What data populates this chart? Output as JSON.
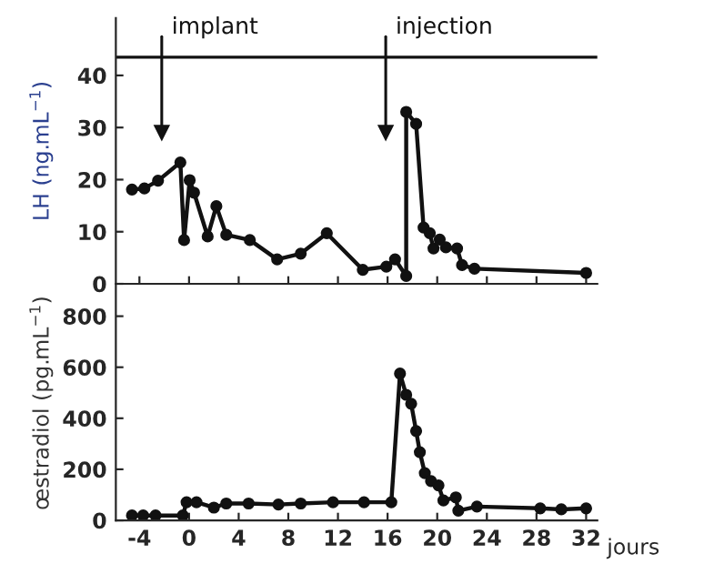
{
  "chart_data": [
    {
      "type": "line",
      "ylabel": "LH (ng.mL$^{−1}$)",
      "marker": "circle",
      "line_style": "solid",
      "tick_labels": "y",
      "xlim": [
        -5.9,
        32.9
      ],
      "xticks": [
        {
          "value": -4,
          "label": null
        },
        {
          "value": 0,
          "label": null
        },
        {
          "value": 4,
          "label": null
        },
        {
          "value": 8,
          "label": null
        },
        {
          "value": 12,
          "label": null
        },
        {
          "value": 16,
          "label": null
        },
        {
          "value": 20,
          "label": null
        },
        {
          "value": 24,
          "label": null
        },
        {
          "value": 28,
          "label": null
        },
        {
          "value": 32,
          "label": null
        }
      ],
      "ylim": [
        0,
        51
      ],
      "yticks": [
        0,
        10,
        20,
        30,
        40
      ],
      "series": [
        {
          "color": "#111111",
          "x": [
            -4.6,
            -3.6,
            -2.5,
            -0.7,
            -0.4,
            0.05,
            0.4,
            1.5,
            2.2,
            3.0,
            4.9,
            7.1,
            9.0,
            11.1,
            14.0,
            15.9,
            16.6,
            17.5,
            17.5,
            18.3,
            18.9,
            19.4,
            19.7,
            20.2,
            20.7,
            21.6,
            22.0,
            23.0,
            32.0
          ],
          "values": [
            18.1,
            18.3,
            19.8,
            23.3,
            8.4,
            19.9,
            17.5,
            9.1,
            14.9,
            9.4,
            8.4,
            4.7,
            5.8,
            9.7,
            2.7,
            3.3,
            4.7,
            1.5,
            33,
            30.7,
            10.8,
            9.7,
            6.8,
            8.5,
            7.0,
            6.8,
            3.6,
            2.9,
            2.1
          ]
        }
      ],
      "ref_lines": [
        {
          "axis": "y",
          "value": 43.5,
          "color": "#111111"
        },
        {
          "axis": "x",
          "value": -2.2,
          "label": "implant",
          "color": "#111111"
        },
        {
          "axis": "x",
          "value": 15.85,
          "label": "injection",
          "color": "#111111"
        }
      ]
    },
    {
      "type": "line",
      "ylabel": "œstradiol (pg.mL$^{−1}$)",
      "xlabel": "jours",
      "marker": "circle",
      "line_style": "solid",
      "xlim": [
        -5.9,
        32.9
      ],
      "xticks": [
        -4,
        0,
        4,
        8,
        12,
        16,
        20,
        24,
        28,
        32
      ],
      "ylim": [
        0,
        920
      ],
      "yticks": [
        0,
        200,
        400,
        600,
        800
      ],
      "series": [
        {
          "color": "#111111",
          "x": [
            -4.6,
            -3.7,
            -2.7,
            -0.5,
            -0.2,
            0.6,
            2.0,
            3.0,
            4.8,
            7.2,
            9.0,
            11.6,
            14.1,
            16.3,
            17.0,
            17.5,
            17.9,
            18.3,
            18.6,
            19.0,
            19.5,
            20.1,
            20.5,
            21.5,
            21.7,
            23.2,
            28.3,
            30.0,
            32.0
          ],
          "values": [
            19,
            19,
            19,
            19,
            71,
            71,
            50,
            66,
            66,
            62,
            66,
            71,
            71,
            71,
            575,
            492,
            457,
            350,
            267,
            185,
            154,
            137,
            78,
            90,
            38,
            54,
            47,
            43,
            47
          ]
        }
      ]
    }
  ]
}
